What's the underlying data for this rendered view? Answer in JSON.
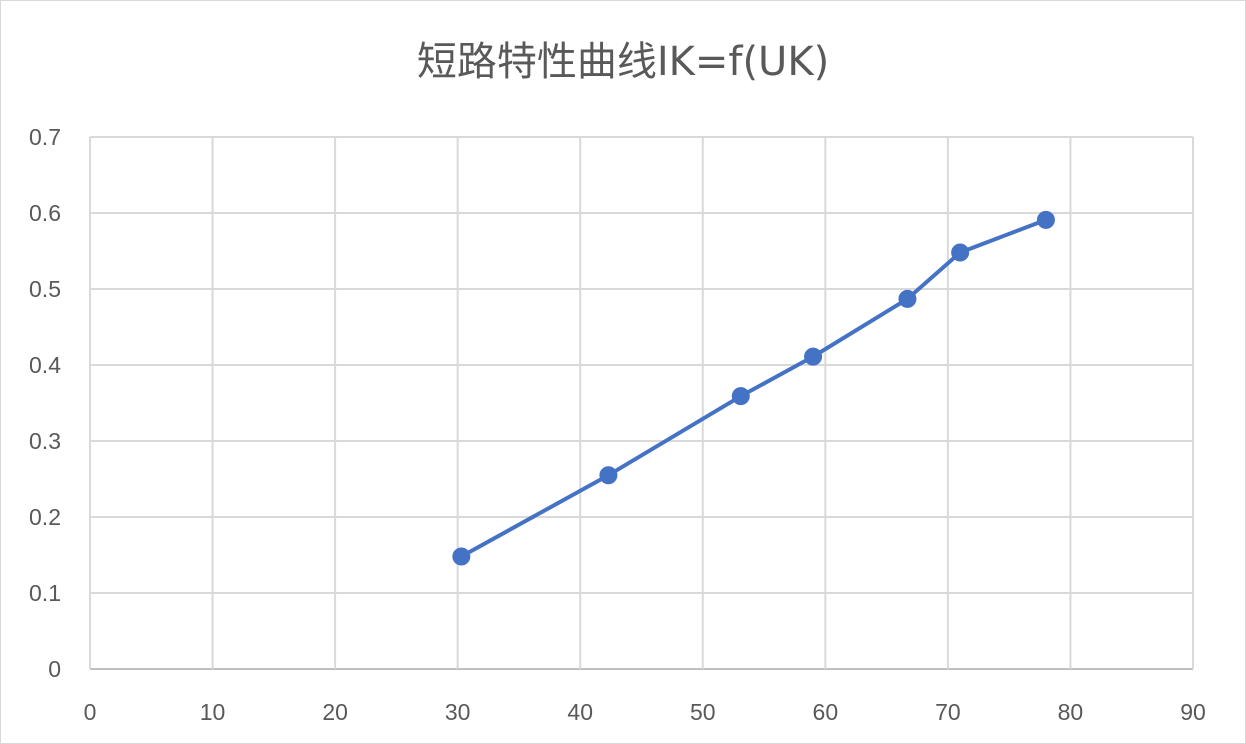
{
  "chart_data": {
    "type": "scatter",
    "title": "短路特性曲线IK=f(UK)",
    "xlabel": "",
    "ylabel": "",
    "xlim": [
      0,
      90
    ],
    "ylim": [
      0,
      0.7
    ],
    "xticks": [
      0,
      10,
      20,
      30,
      40,
      50,
      60,
      70,
      80,
      90
    ],
    "yticks": [
      0,
      0.1,
      0.2,
      0.3,
      0.4,
      0.5,
      0.6,
      0.7
    ],
    "grid": true,
    "legend": "none",
    "series": [
      {
        "color": "#4472c4",
        "marker": "circle",
        "line": "straight",
        "points": [
          {
            "x": 30.3,
            "y": 0.148
          },
          {
            "x": 42.3,
            "y": 0.255
          },
          {
            "x": 53.1,
            "y": 0.359
          },
          {
            "x": 59.0,
            "y": 0.411
          },
          {
            "x": 66.7,
            "y": 0.487
          },
          {
            "x": 71.0,
            "y": 0.548
          },
          {
            "x": 78.0,
            "y": 0.591
          }
        ]
      }
    ]
  }
}
